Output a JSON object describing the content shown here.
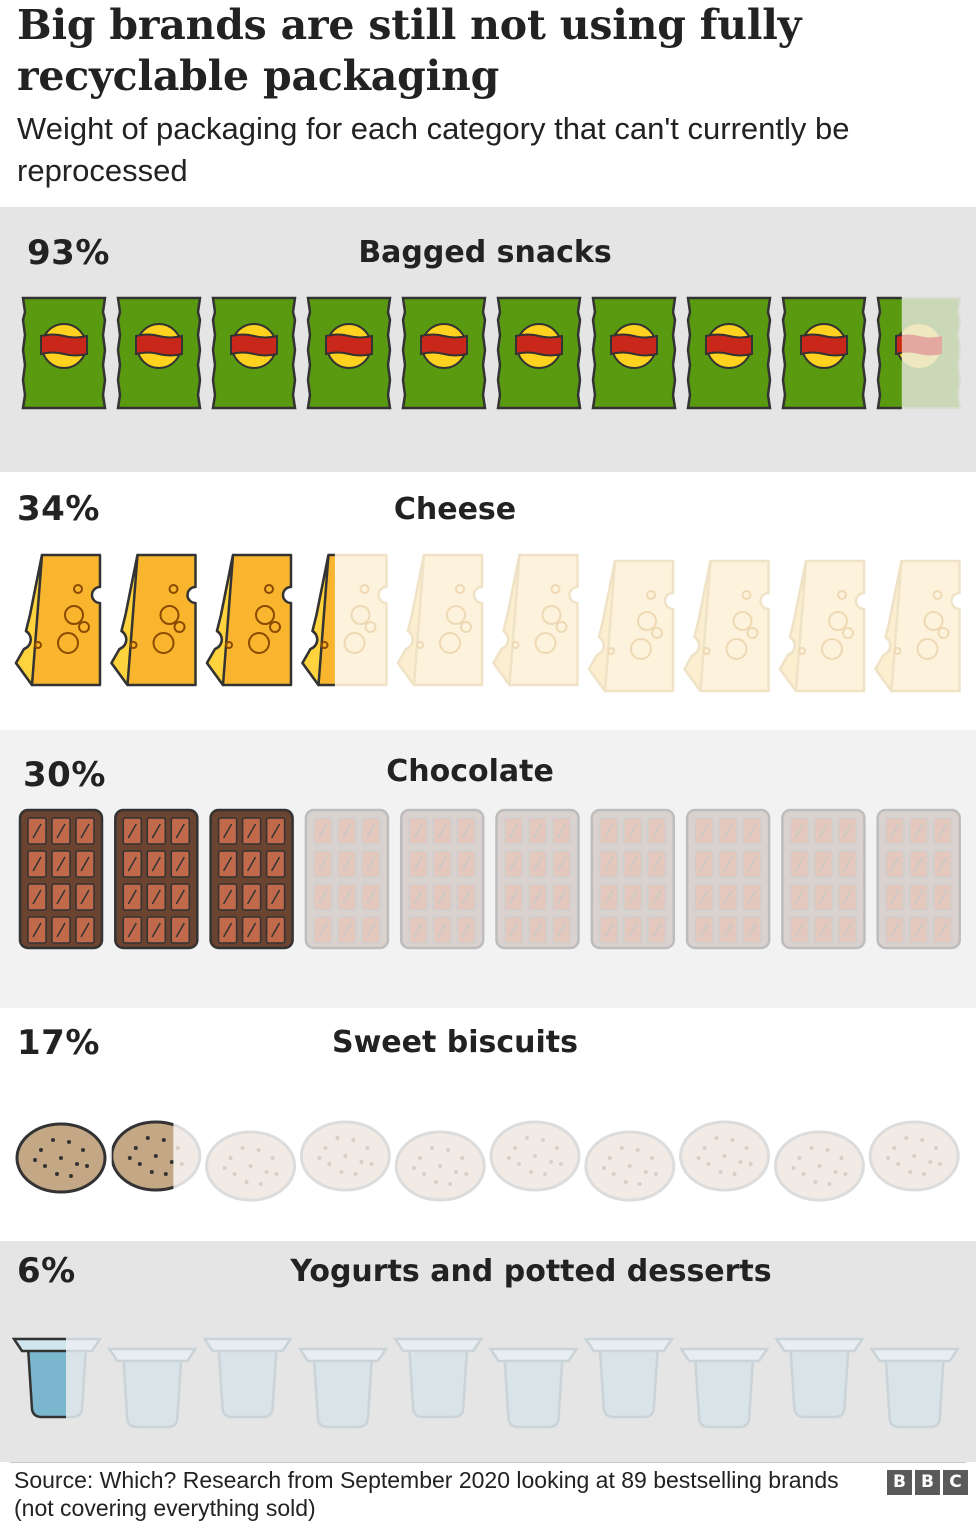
{
  "title": "Big brands are still not using fully recyclable packaging",
  "subtitle": "Weight of packaging for each category that can't currently be reprocessed",
  "source": "Source: Which? Research from September 2020 looking at 89 bestselling brands (not covering everything sold)",
  "logo": [
    "B",
    "B",
    "C"
  ],
  "chart_data": {
    "type": "pictogram",
    "icons_per_row": 10,
    "unit": "%",
    "categories": [
      "Bagged snacks",
      "Cheese",
      "Chocolate",
      "Sweet biscuits",
      "Yogurts and potted desserts"
    ],
    "values": [
      93,
      34,
      30,
      17,
      6
    ],
    "labels": [
      "93%",
      "34%",
      "30%",
      "17%",
      "6%"
    ],
    "colors": {
      "bagged_snacks": "#5a9a10",
      "cheese": "#f9b52e",
      "chocolate": "#6b4331",
      "sweet_biscuits": "#c4a885",
      "yogurts": "#7ab7cf"
    }
  }
}
